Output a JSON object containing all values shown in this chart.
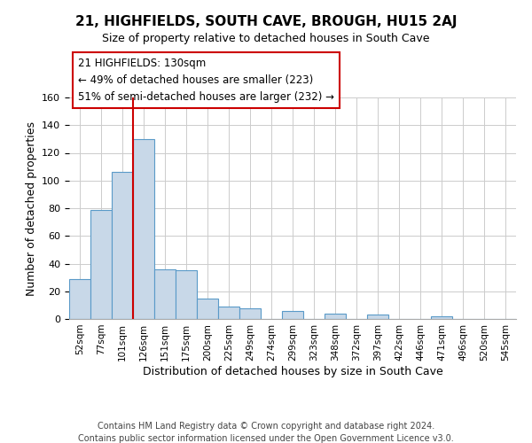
{
  "title": "21, HIGHFIELDS, SOUTH CAVE, BROUGH, HU15 2AJ",
  "subtitle": "Size of property relative to detached houses in South Cave",
  "xlabel": "Distribution of detached houses by size in South Cave",
  "ylabel": "Number of detached properties",
  "footer_line1": "Contains HM Land Registry data © Crown copyright and database right 2024.",
  "footer_line2": "Contains public sector information licensed under the Open Government Licence v3.0.",
  "bin_labels": [
    "52sqm",
    "77sqm",
    "101sqm",
    "126sqm",
    "151sqm",
    "175sqm",
    "200sqm",
    "225sqm",
    "249sqm",
    "274sqm",
    "299sqm",
    "323sqm",
    "348sqm",
    "372sqm",
    "397sqm",
    "422sqm",
    "446sqm",
    "471sqm",
    "496sqm",
    "520sqm",
    "545sqm"
  ],
  "bar_heights": [
    29,
    79,
    106,
    130,
    36,
    35,
    15,
    9,
    8,
    0,
    6,
    0,
    4,
    0,
    3,
    0,
    0,
    2,
    0,
    0,
    0
  ],
  "bar_color": "#c8d8e8",
  "bar_edge_color": "#5a9ac8",
  "vline_x_index": 3,
  "vline_color": "#cc0000",
  "annotation_text": "21 HIGHFIELDS: 130sqm\n← 49% of detached houses are smaller (223)\n51% of semi-detached houses are larger (232) →",
  "annotation_box_color": "#ffffff",
  "annotation_box_edge": "#cc0000",
  "ylim": [
    0,
    160
  ],
  "yticks": [
    0,
    20,
    40,
    60,
    80,
    100,
    120,
    140,
    160
  ],
  "background_color": "#ffffff",
  "grid_color": "#cccccc"
}
